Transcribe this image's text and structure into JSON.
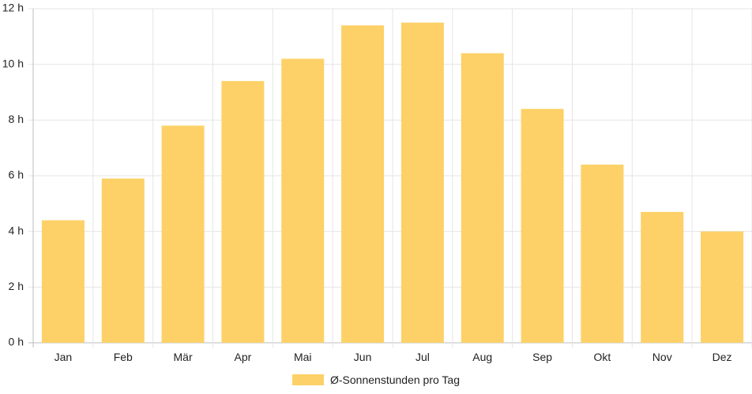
{
  "chart_data": {
    "type": "bar",
    "categories": [
      "Jan",
      "Feb",
      "Mär",
      "Apr",
      "Mai",
      "Jun",
      "Jul",
      "Aug",
      "Sep",
      "Okt",
      "Nov",
      "Dez"
    ],
    "series": [
      {
        "name": "Ø-Sonnenstunden pro Tag",
        "values": [
          4.4,
          5.9,
          7.8,
          9.4,
          10.2,
          11.4,
          11.5,
          10.4,
          8.4,
          6.4,
          4.7,
          4.0
        ]
      }
    ],
    "ylim": [
      0,
      12
    ],
    "yticks": [
      0,
      2,
      4,
      6,
      8,
      10,
      12
    ],
    "ytick_labels": [
      "0 h",
      "2 h",
      "4 h",
      "6 h",
      "8 h",
      "10 h",
      "12 h"
    ],
    "grid": true,
    "legend_position": "bottom",
    "colors": {
      "bar": "#fdd168",
      "grid": "#e5e5e5",
      "axis": "#bdbdbd"
    }
  },
  "legend": {
    "label": "Ø-Sonnenstunden pro Tag"
  }
}
